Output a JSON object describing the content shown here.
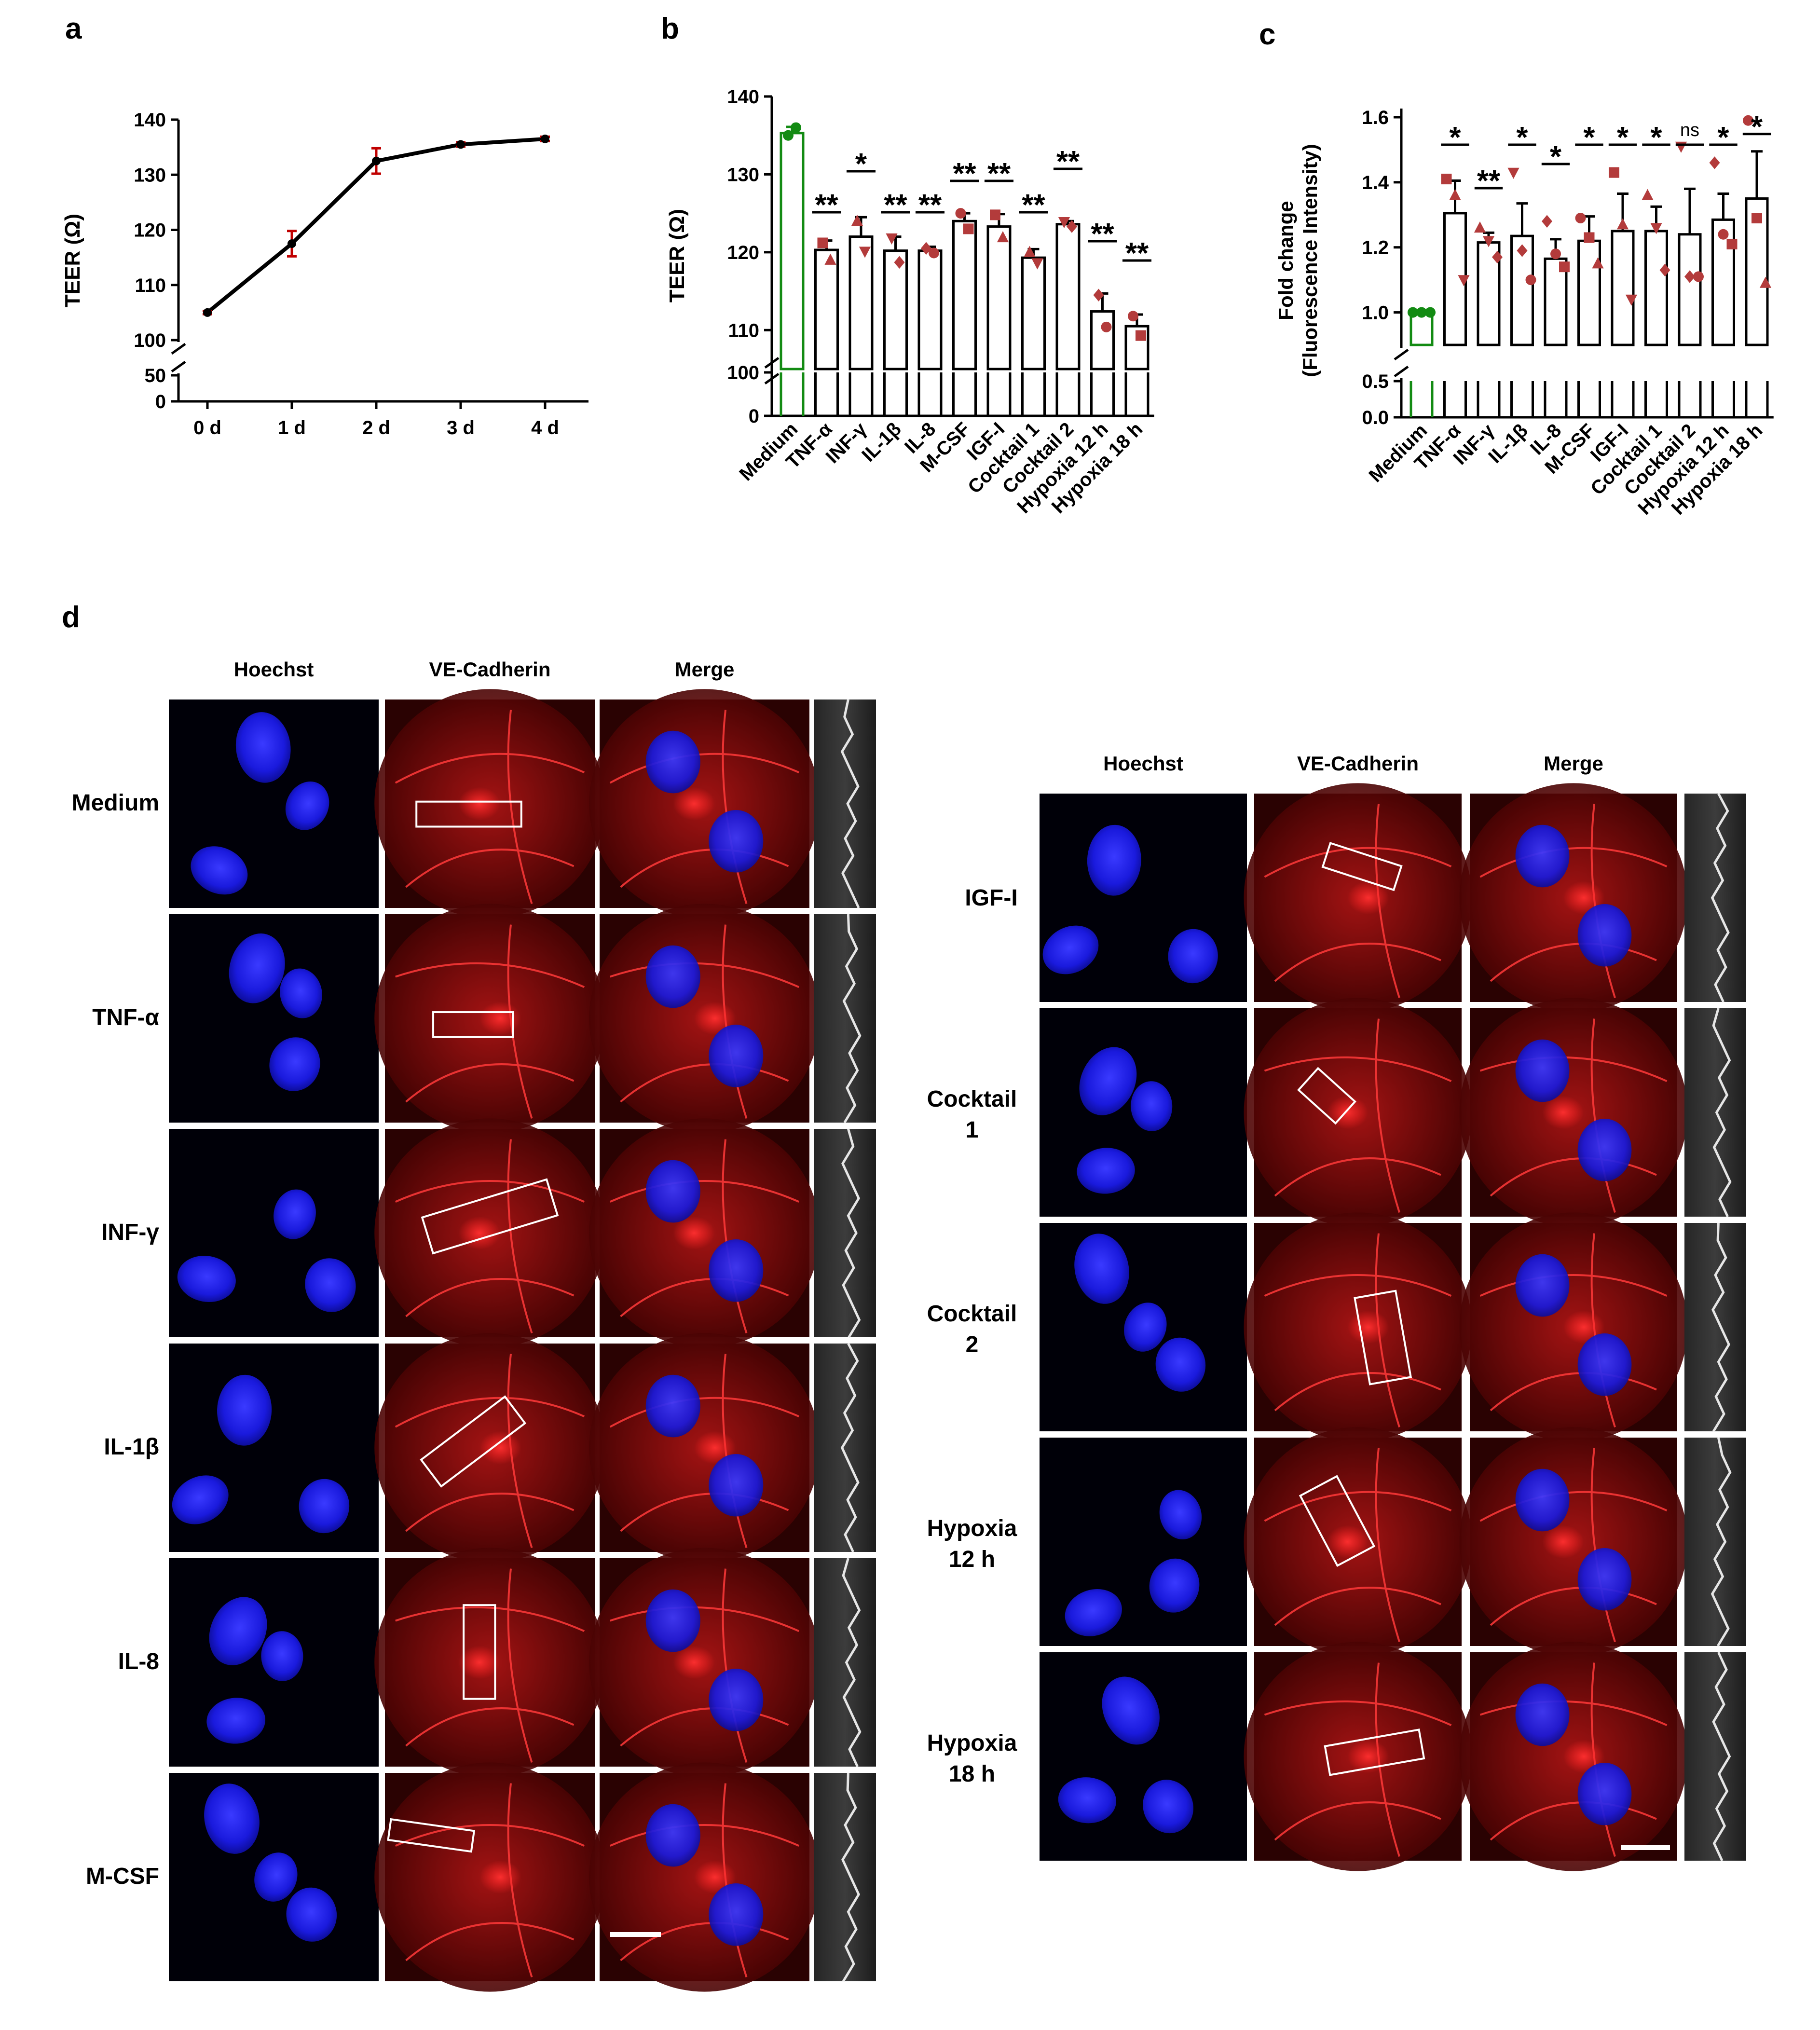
{
  "panels": {
    "a": "a",
    "b": "b",
    "c": "c",
    "d": "d"
  },
  "chart_data": [
    {
      "type": "line",
      "panel": "a",
      "ylabel": "TEER (Ω)",
      "categories": [
        "0 d",
        "1 d",
        "2 d",
        "3 d",
        "4 d"
      ],
      "values": [
        105,
        117.5,
        132.5,
        135.5,
        136.5
      ],
      "errors": [
        0.3,
        2.3,
        2.3,
        0.4,
        0.4
      ],
      "broken_axis": true,
      "ylim_lower": [
        0,
        50
      ],
      "ylim_upper": [
        100,
        140
      ],
      "yticks_lower": [
        "0",
        "50"
      ],
      "yticks_upper": [
        "100",
        "110",
        "120",
        "130",
        "140"
      ],
      "color_line": "#000000",
      "color_error": "#c00000"
    },
    {
      "type": "bar",
      "panel": "b",
      "ylabel": "TEER (Ω)",
      "categories": [
        "Medium",
        "TNF-α",
        "INF-γ",
        "IL-1β",
        "IL-8",
        "M-CSF",
        "IGF-I",
        "Cocktail 1",
        "Cocktail 2",
        "Hypoxia 12 h",
        "Hypoxia 18 h"
      ],
      "values": [
        135.3,
        120.3,
        122.0,
        120.2,
        120.2,
        124.0,
        123.3,
        119.3,
        123.6,
        112.4,
        110.5
      ],
      "errors": [
        0.8,
        1.2,
        2.5,
        1.8,
        0.5,
        1.0,
        1.6,
        1.1,
        0.4,
        2.3,
        1.5
      ],
      "points": [
        [
          135.0,
          136.0
        ],
        [
          121.2,
          119.0
        ],
        [
          124.0,
          120.1
        ],
        [
          121.8,
          118.7
        ],
        [
          120.5,
          119.9
        ],
        [
          125.0,
          123.0
        ],
        [
          124.8,
          121.9
        ],
        [
          120.0,
          118.6
        ],
        [
          123.9,
          123.3
        ],
        [
          114.5,
          110.4
        ],
        [
          111.8,
          109.3
        ]
      ],
      "significance": [
        "",
        "**",
        "*",
        "**",
        "**",
        "**",
        "**",
        "**",
        "**",
        "**",
        "**"
      ],
      "broken_axis": true,
      "yticks_lower": [
        "0",
        "100"
      ],
      "yticks_upper": [
        "110",
        "120",
        "130",
        "140"
      ],
      "ylim_upper": [
        105,
        140
      ],
      "color_control": "#138b13",
      "color_points": "#b33b3b"
    },
    {
      "type": "bar",
      "panel": "c",
      "ylabel": "Fold change (Fluorescence Intensity)",
      "ylabel_lines": [
        "Fold change",
        "(Fluorescence Intensity)"
      ],
      "categories": [
        "Medium",
        "TNF-α",
        "INF-γ",
        "IL-1β",
        "IL-8",
        "M-CSF",
        "IGF-I",
        "Cocktail 1",
        "Cocktail 2",
        "Hypoxia 12 h",
        "Hypoxia 18 h"
      ],
      "values": [
        1.0,
        1.305,
        1.215,
        1.235,
        1.165,
        1.22,
        1.25,
        1.25,
        1.24,
        1.285,
        1.35
      ],
      "errors": [
        0.005,
        0.1,
        0.03,
        0.1,
        0.06,
        0.075,
        0.115,
        0.075,
        0.14,
        0.08,
        0.145
      ],
      "points": [
        [
          1.0,
          1.0,
          1.0
        ],
        [
          1.41,
          1.36,
          1.1
        ],
        [
          1.26,
          1.22,
          1.17
        ],
        [
          1.43,
          1.19,
          1.1
        ],
        [
          1.28,
          1.18,
          1.14
        ],
        [
          1.29,
          1.23,
          1.15
        ],
        [
          1.43,
          1.27,
          1.04
        ],
        [
          1.36,
          1.26,
          1.13
        ],
        [
          1.51,
          1.11,
          1.11
        ],
        [
          1.46,
          1.24,
          1.21
        ],
        [
          1.59,
          1.29,
          1.09
        ]
      ],
      "significance": [
        "",
        "*",
        "**",
        "*",
        "*",
        "*",
        "*",
        "*",
        "ns",
        "*",
        "*"
      ],
      "broken_axis": true,
      "yticks_lower": [
        "0.0",
        "0.5"
      ],
      "yticks_upper": [
        "1.0",
        "1.2",
        "1.4",
        "1.6"
      ],
      "ylim_upper": [
        0.9,
        1.62
      ],
      "color_control": "#138b13",
      "color_points": "#b33b3b"
    }
  ],
  "microscopy": {
    "channels": [
      "Hoechst",
      "VE-Cadherin",
      "Merge"
    ],
    "left_rows": [
      "Medium",
      "TNF-α",
      "INF-γ",
      "IL-1β",
      "IL-8",
      "M-CSF"
    ],
    "right_rows": [
      [
        "IGF-I"
      ],
      [
        "Cocktail",
        "1"
      ],
      [
        "Cocktail",
        "2"
      ],
      [
        "Hypoxia",
        "12 h"
      ],
      [
        "Hypoxia",
        "18 h"
      ]
    ]
  }
}
